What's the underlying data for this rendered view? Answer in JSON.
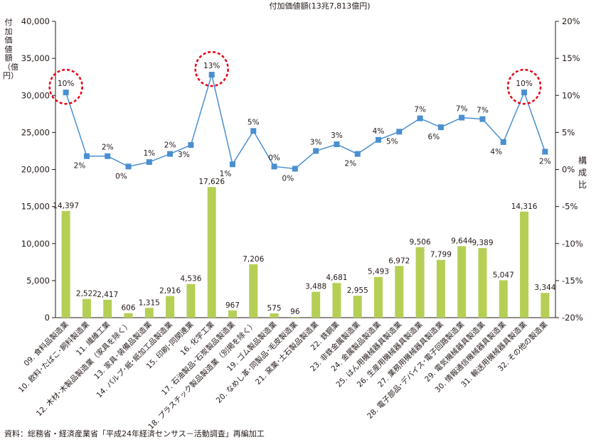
{
  "chart_data": {
    "type": "bar+line",
    "title": "付加価値額(13兆7,813億円)",
    "y_left_label": "付加価値額（億円）",
    "y_right_label": "構成比",
    "y_left_range": [
      0,
      40000
    ],
    "y_left_ticks": [
      "0",
      "5,000",
      "10,000",
      "15,000",
      "20,000",
      "25,000",
      "30,000",
      "35,000",
      "40,000"
    ],
    "y_right_range": [
      -20,
      20
    ],
    "y_right_ticks": [
      "-20%",
      "-15%",
      "-10%",
      "-5%",
      "0%",
      "5%",
      "10%",
      "15%",
      "20%"
    ],
    "categories": [
      "09. 食料品製造業",
      "10. 飲料･たばこ･飼料製造業",
      "11. 繊維工業",
      "12. 木材･木製品製造業（家具を除く）",
      "13. 家具･装備品製造業",
      "14. パルプ･紙･紙加工品製造業",
      "15. 印刷･同関連業",
      "16. 化学工業",
      "17. 石油製品･石炭製品製造業",
      "18. プラスチック製品製造業（別掲を除く）",
      "19. ゴム製品製造業",
      "20. なめし革･同製品･毛皮製造業",
      "21. 窯業･土石製品製造業",
      "22. 鉄鋼業",
      "23. 非鉄金属製造業",
      "24. 金属製品製造業",
      "25. はん用機械器具製造業",
      "26. 生産用機械器具製造業",
      "27. 業務用機械器具製造業",
      "28. 電子部品･デバイス･電子回路製造業",
      "29. 電気機械器具製造業",
      "30. 情報通信機械器具製造業",
      "31. 輸送用機械器具製造業",
      "32. その他の製造業"
    ],
    "series": [
      {
        "type": "bar",
        "color": "#b5cf55",
        "values": [
          14397,
          2522,
          2417,
          606,
          1315,
          2916,
          4536,
          17626,
          967,
          7206,
          575,
          96,
          3488,
          4681,
          2955,
          5493,
          6972,
          9506,
          7799,
          9644,
          9389,
          5047,
          14316,
          3344
        ],
        "labels": [
          "14,397",
          "2,522",
          "2,417",
          "606",
          "1,315",
          "2,916",
          "4,536",
          "17,626",
          "967",
          "7,206",
          "575",
          "96",
          "3,488",
          "4,681",
          "2,955",
          "5,493",
          "6,972",
          "9,506",
          "7,799",
          "9,644",
          "9,389",
          "5,047",
          "14,316",
          "3,344"
        ]
      },
      {
        "type": "line",
        "axis": "right",
        "color": "#4a8fd0",
        "values": [
          10.4,
          1.8,
          1.8,
          0.4,
          1.0,
          2.1,
          3.3,
          12.8,
          0.7,
          5.2,
          0.4,
          0.1,
          2.5,
          3.4,
          2.1,
          4.0,
          5.1,
          6.9,
          5.7,
          7.0,
          6.8,
          3.7,
          10.4,
          2.4
        ],
        "labels": [
          "10%",
          "2%",
          "2%",
          "0%",
          "1%",
          "2%",
          "3%",
          "13%",
          "1%",
          "5%",
          "0%",
          "0%",
          "3%",
          "3%",
          "2%",
          "4%",
          "5%",
          "7%",
          "6%",
          "7%",
          "7%",
          "4%",
          "10%",
          "2%"
        ]
      }
    ],
    "highlighted_points": [
      0,
      7,
      22
    ]
  },
  "source_note": "資料：総務省・経済産業省「平成24年経済センサス－活動調査」再編加工"
}
